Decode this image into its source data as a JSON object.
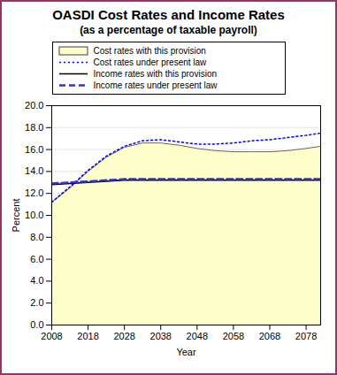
{
  "chart_data": {
    "type": "line",
    "title": "OASDI Cost Rates and Income Rates",
    "subtitle": "(as a percentage of taxable payroll)",
    "x_label": "Year",
    "y_label": "Percent",
    "x": [
      2008,
      2013,
      2018,
      2023,
      2028,
      2033,
      2038,
      2043,
      2048,
      2053,
      2058,
      2063,
      2068,
      2073,
      2078,
      2082
    ],
    "series": [
      {
        "name": "Cost rates with this provision",
        "type": "area",
        "color": "#ffffcc",
        "line_style": "solid",
        "values": [
          11.2,
          12.5,
          14.0,
          15.3,
          16.2,
          16.6,
          16.6,
          16.4,
          16.1,
          15.9,
          15.8,
          15.8,
          15.8,
          15.9,
          16.1,
          16.3
        ]
      },
      {
        "name": "Cost rates under present law",
        "type": "line",
        "color": "#0000ff",
        "line_style": "dotted",
        "values": [
          11.2,
          12.6,
          14.1,
          15.4,
          16.3,
          16.8,
          16.9,
          16.7,
          16.5,
          16.5,
          16.6,
          16.8,
          16.9,
          17.1,
          17.3,
          17.5
        ]
      },
      {
        "name": "Income rates with this provision",
        "type": "line",
        "color": "#000000",
        "line_style": "solid",
        "values": [
          12.8,
          12.9,
          13.0,
          13.1,
          13.2,
          13.2,
          13.2,
          13.2,
          13.2,
          13.2,
          13.2,
          13.2,
          13.2,
          13.2,
          13.2,
          13.2
        ]
      },
      {
        "name": "Income rates under present law",
        "type": "line",
        "color": "#3333cc",
        "line_style": "dashed",
        "values": [
          12.9,
          13.0,
          13.1,
          13.2,
          13.3,
          13.3,
          13.3,
          13.3,
          13.3,
          13.3,
          13.3,
          13.3,
          13.3,
          13.3,
          13.3,
          13.3
        ]
      }
    ],
    "xlim": [
      2008,
      2082
    ],
    "xticks": [
      2008,
      2018,
      2028,
      2038,
      2048,
      2058,
      2068,
      2078
    ],
    "ylim": [
      0,
      20
    ],
    "yticks": [
      {
        "value": 0,
        "label": "0.0"
      },
      {
        "value": 2,
        "label": "2.0"
      },
      {
        "value": 4,
        "label": "4.0"
      },
      {
        "value": 6,
        "label": "6.0"
      },
      {
        "value": 8,
        "label": "8.0"
      },
      {
        "value": 10,
        "label": "10.0"
      },
      {
        "value": 12,
        "label": "12.0"
      },
      {
        "value": 14,
        "label": "14.0"
      },
      {
        "value": 16,
        "label": "16.0"
      },
      {
        "value": 18,
        "label": "18.0"
      },
      {
        "value": 20,
        "label": "20.0"
      }
    ],
    "grid": true,
    "legend": "top"
  }
}
